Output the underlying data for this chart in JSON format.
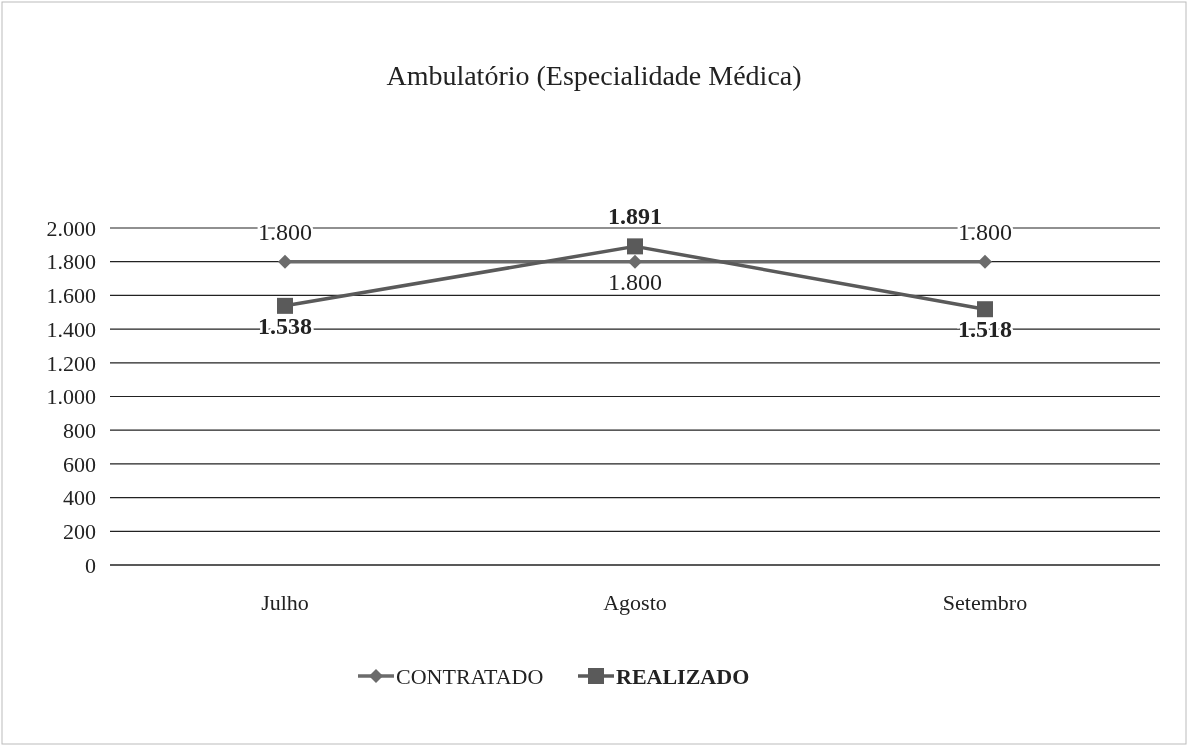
{
  "chart_data": {
    "type": "line",
    "title": "Ambulatório (Especialidade Médica)",
    "categories": [
      "Julho",
      "Agosto",
      "Setembro"
    ],
    "series": [
      {
        "name": "CONTRATADO",
        "color": "#6b6b6b",
        "marker": "diamond",
        "values": [
          1800,
          1800,
          1800
        ],
        "value_labels": [
          "1.800",
          "1.800",
          "1.800"
        ]
      },
      {
        "name": "REALIZADO",
        "color": "#5a5a5a",
        "marker": "square",
        "values": [
          1538,
          1891,
          1518
        ],
        "value_labels": [
          "1.538",
          "1.891",
          "1.518"
        ]
      }
    ],
    "ylim": [
      0,
      2000
    ],
    "yticks": [
      {
        "value": 0,
        "label": "0"
      },
      {
        "value": 200,
        "label": "200"
      },
      {
        "value": 400,
        "label": "400"
      },
      {
        "value": 600,
        "label": "600"
      },
      {
        "value": 800,
        "label": "800"
      },
      {
        "value": 1000,
        "label": "1.000"
      },
      {
        "value": 1200,
        "label": "1.200"
      },
      {
        "value": 1400,
        "label": "1.400"
      },
      {
        "value": 1600,
        "label": "1.600"
      },
      {
        "value": 1800,
        "label": "1.800"
      },
      {
        "value": 2000,
        "label": "2.000"
      }
    ],
    "grid": "y",
    "legend": "bottom",
    "line_style": "solid"
  }
}
